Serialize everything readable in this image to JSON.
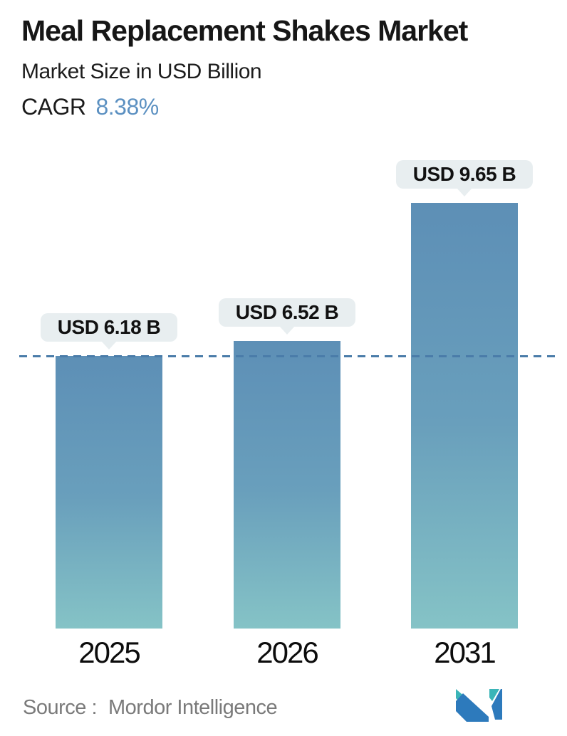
{
  "header": {
    "title": "Meal Replacement Shakes Market",
    "subtitle": "Market Size in USD Billion",
    "cagr_label": "CAGR",
    "cagr_value": "8.38%"
  },
  "chart_data": {
    "type": "bar",
    "categories": [
      "2025",
      "2026",
      "2031"
    ],
    "values": [
      6.18,
      6.52,
      9.65
    ],
    "value_labels": [
      "USD 6.18 B",
      "USD 6.52 B",
      "USD 9.65 B"
    ],
    "title": "Meal Replacement Shakes Market",
    "subtitle": "Market Size in USD Billion",
    "unit": "USD Billion",
    "cagr": "8.38%",
    "ylim": [
      0,
      10
    ],
    "grid": false,
    "legend": false,
    "reference_line": {
      "value": 6.18,
      "style": "dashed",
      "color": "#4a7ca9"
    },
    "bar_gradient_top": "#5d8fb6",
    "bar_gradient_bottom": "#85c3c6",
    "callout_background": "#e8eef0"
  },
  "footer": {
    "source_label": "Source :",
    "source_value": "Mordor Intelligence",
    "logo_name": "mordor-intelligence-logo"
  },
  "colors": {
    "accent_blue": "#5b90c1",
    "dashed_line": "#4a7ca9",
    "source_text": "#7a7a7a",
    "logo_teal": "#3bb5b8",
    "logo_blue": "#2d7abc"
  }
}
